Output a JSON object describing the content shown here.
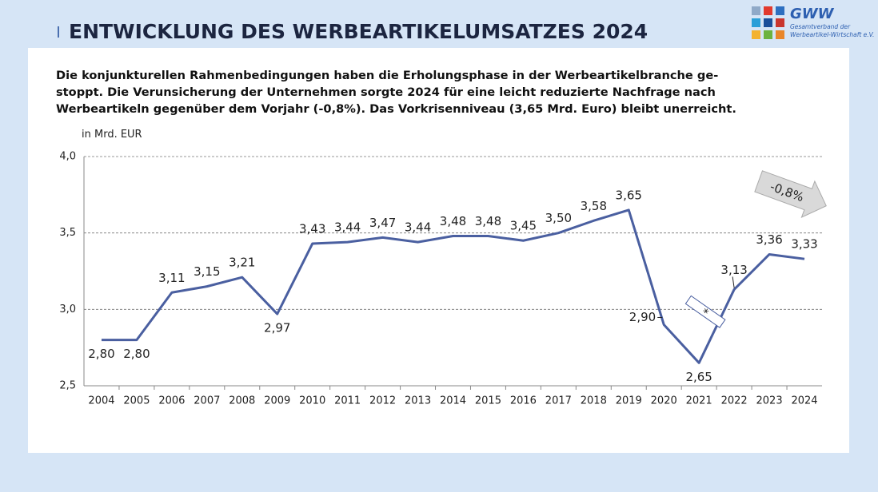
{
  "header": {
    "title": "ENTWICKLUNG DES WERBEARTIKELUMSATZES 2024",
    "logo": {
      "name": "GWW",
      "line1": "Gesamtverband der",
      "line2": "Werbeartikel-Wirtschaft e.V."
    }
  },
  "intro": [
    "Die konjunkturellen Rahmenbedingungen haben die Erholungsphase in der Werbeartikelbranche ge-",
    "stoppt. Die Verunsicherung der Unternehmen sorgte 2024 für eine leicht reduzierte Nachfrage nach",
    "Werbeartikeln gegenüber dem Vorjahr (-0,8%). Das Vorkrisenniveau (3,65 Mrd. Euro) bleibt unerreicht."
  ],
  "chart_data": {
    "type": "line",
    "y_label": "in Mrd. EUR",
    "categories": [
      "2004",
      "2005",
      "2006",
      "2007",
      "2008",
      "2009",
      "2010",
      "2011",
      "2012",
      "2013",
      "2014",
      "2015",
      "2016",
      "2017",
      "2018",
      "2019",
      "2020",
      "2021",
      "2022",
      "2023",
      "2024"
    ],
    "values": [
      2.8,
      2.8,
      3.11,
      3.15,
      3.21,
      2.97,
      3.43,
      3.44,
      3.47,
      3.44,
      3.48,
      3.48,
      3.45,
      3.5,
      3.58,
      3.65,
      2.9,
      2.65,
      3.13,
      3.36,
      3.33
    ],
    "value_labels": [
      "2,80",
      "2,80",
      "3,11",
      "3,15",
      "3,21",
      "2,97",
      "3,43",
      "3,44",
      "3,47",
      "3,44",
      "3,48",
      "3,48",
      "3,45",
      "3,50",
      "3,58",
      "3,65",
      "2,90",
      "2,65",
      "3,13",
      "3,36",
      "3,33"
    ],
    "color": "#4a5fa0",
    "ylim": [
      2.5,
      4.0
    ],
    "yticks": [
      {
        "value": 2.5,
        "label": "2,5"
      },
      {
        "value": 3.0,
        "label": "3,0"
      },
      {
        "value": 3.5,
        "label": "3,5"
      },
      {
        "value": 4.0,
        "label": "4,0"
      }
    ],
    "grid": true,
    "annotations": {
      "change": "-0,8%",
      "break_marker": "*"
    }
  }
}
